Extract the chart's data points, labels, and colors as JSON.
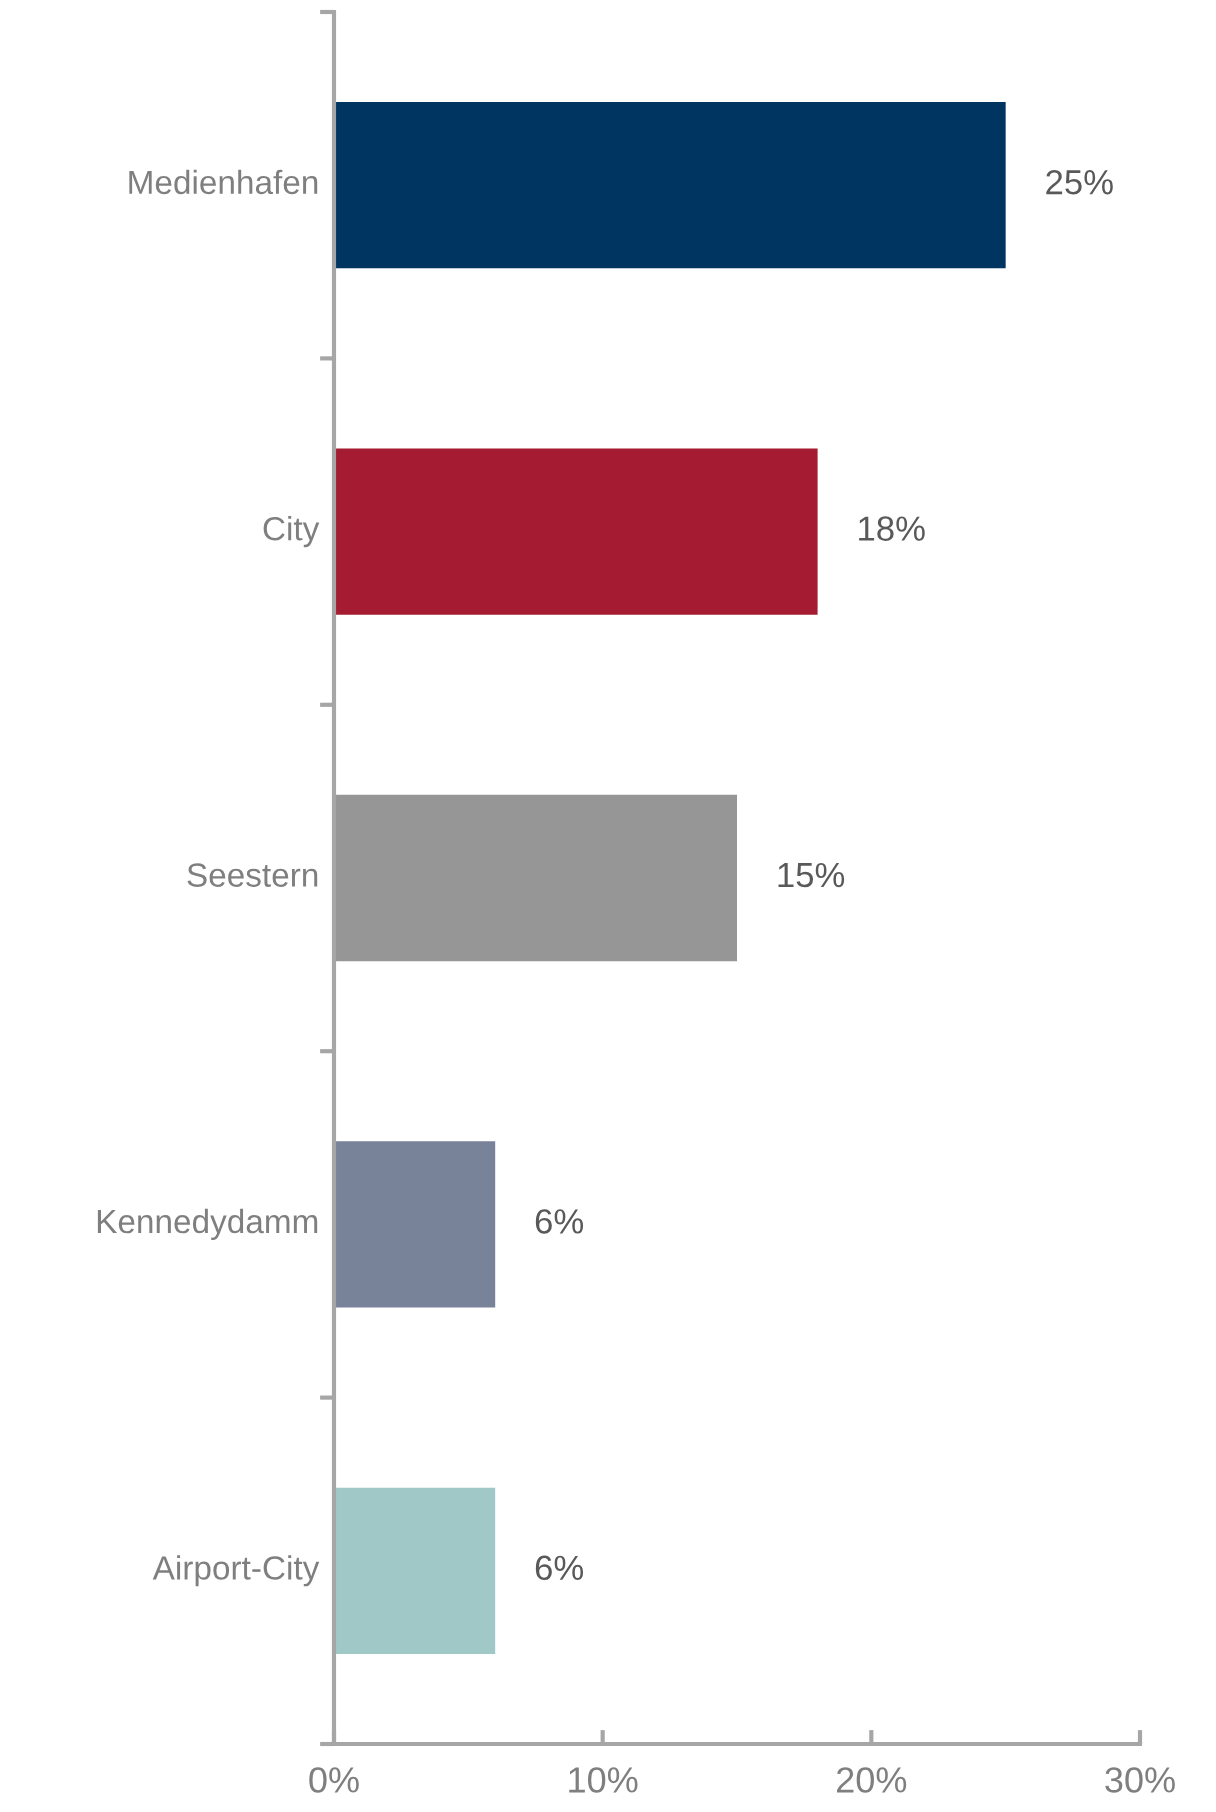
{
  "chart_data": {
    "type": "bar",
    "orientation": "horizontal",
    "categories": [
      "Medienhafen",
      "City",
      "Seestern",
      "Kennedydamm",
      "Airport-City"
    ],
    "values": [
      25,
      18,
      15,
      6,
      6
    ],
    "colors": [
      "#003562",
      "#a51b31",
      "#969696",
      "#788299",
      "#a0c8c6"
    ],
    "value_labels": [
      "25%",
      "18%",
      "15%",
      "6%",
      "6%"
    ],
    "xlim": [
      0,
      30
    ],
    "xticks": [
      {
        "value": 0,
        "label": "0%"
      },
      {
        "value": 10,
        "label": "10%"
      },
      {
        "value": 20,
        "label": "20%"
      },
      {
        "value": 30,
        "label": "30%"
      }
    ],
    "grid": false,
    "legend": false
  }
}
